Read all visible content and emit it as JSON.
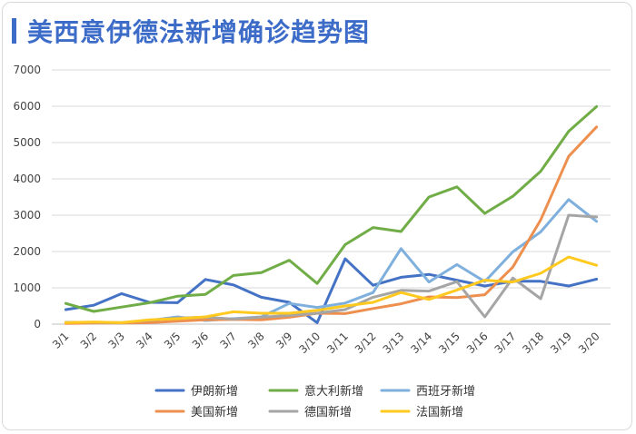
{
  "chart_data": {
    "type": "line",
    "title": "美西意伊德法新增确诊趋势图",
    "xlabel": "",
    "ylabel": "",
    "ylim": [
      0,
      7000
    ],
    "yticks": [
      0,
      1000,
      2000,
      3000,
      4000,
      5000,
      6000,
      7000
    ],
    "grid": true,
    "legend_position": "bottom",
    "categories": [
      "3/1",
      "3/2",
      "3/3",
      "3/4",
      "3/5",
      "3/6",
      "3/7",
      "3/8",
      "3/9",
      "3/10",
      "3/11",
      "3/12",
      "3/13",
      "3/14",
      "3/15",
      "3/16",
      "3/17",
      "3/18",
      "3/19",
      "3/20"
    ],
    "series": [
      {
        "name": "伊朗新增",
        "color": "#4472c4",
        "values": [
          400,
          520,
          840,
          600,
          590,
          1230,
          1080,
          740,
          600,
          40,
          1800,
          1070,
          1290,
          1370,
          1210,
          1050,
          1180,
          1180,
          1050,
          1240
        ]
      },
      {
        "name": "意大利新增",
        "color": "#70ad47",
        "values": [
          570,
          350,
          470,
          590,
          770,
          820,
          1340,
          1420,
          1760,
          1120,
          2190,
          2660,
          2550,
          3500,
          3780,
          3050,
          3520,
          4210,
          5310,
          5990
        ]
      },
      {
        "name": "西班牙新增",
        "color": "#7fb0dd",
        "values": [
          30,
          40,
          30,
          100,
          200,
          100,
          150,
          200,
          570,
          460,
          580,
          870,
          2080,
          1160,
          1640,
          1170,
          1990,
          2540,
          3430,
          2830
        ]
      },
      {
        "name": "美国新增",
        "color": "#ed8f4f",
        "values": [
          20,
          30,
          30,
          40,
          80,
          120,
          130,
          120,
          190,
          300,
          290,
          430,
          560,
          750,
          730,
          810,
          1570,
          2870,
          4620,
          5430
        ]
      },
      {
        "name": "德国新增",
        "color": "#a5a5a5",
        "values": [
          50,
          50,
          40,
          110,
          170,
          190,
          140,
          190,
          240,
          300,
          400,
          740,
          930,
          910,
          1170,
          200,
          1270,
          700,
          3000,
          2950
        ]
      },
      {
        "name": "法国新增",
        "color": "#ffc91f",
        "values": [
          40,
          60,
          40,
          120,
          150,
          200,
          340,
          300,
          300,
          380,
          500,
          600,
          870,
          680,
          940,
          1210,
          1160,
          1400,
          1850,
          1620
        ]
      }
    ]
  }
}
